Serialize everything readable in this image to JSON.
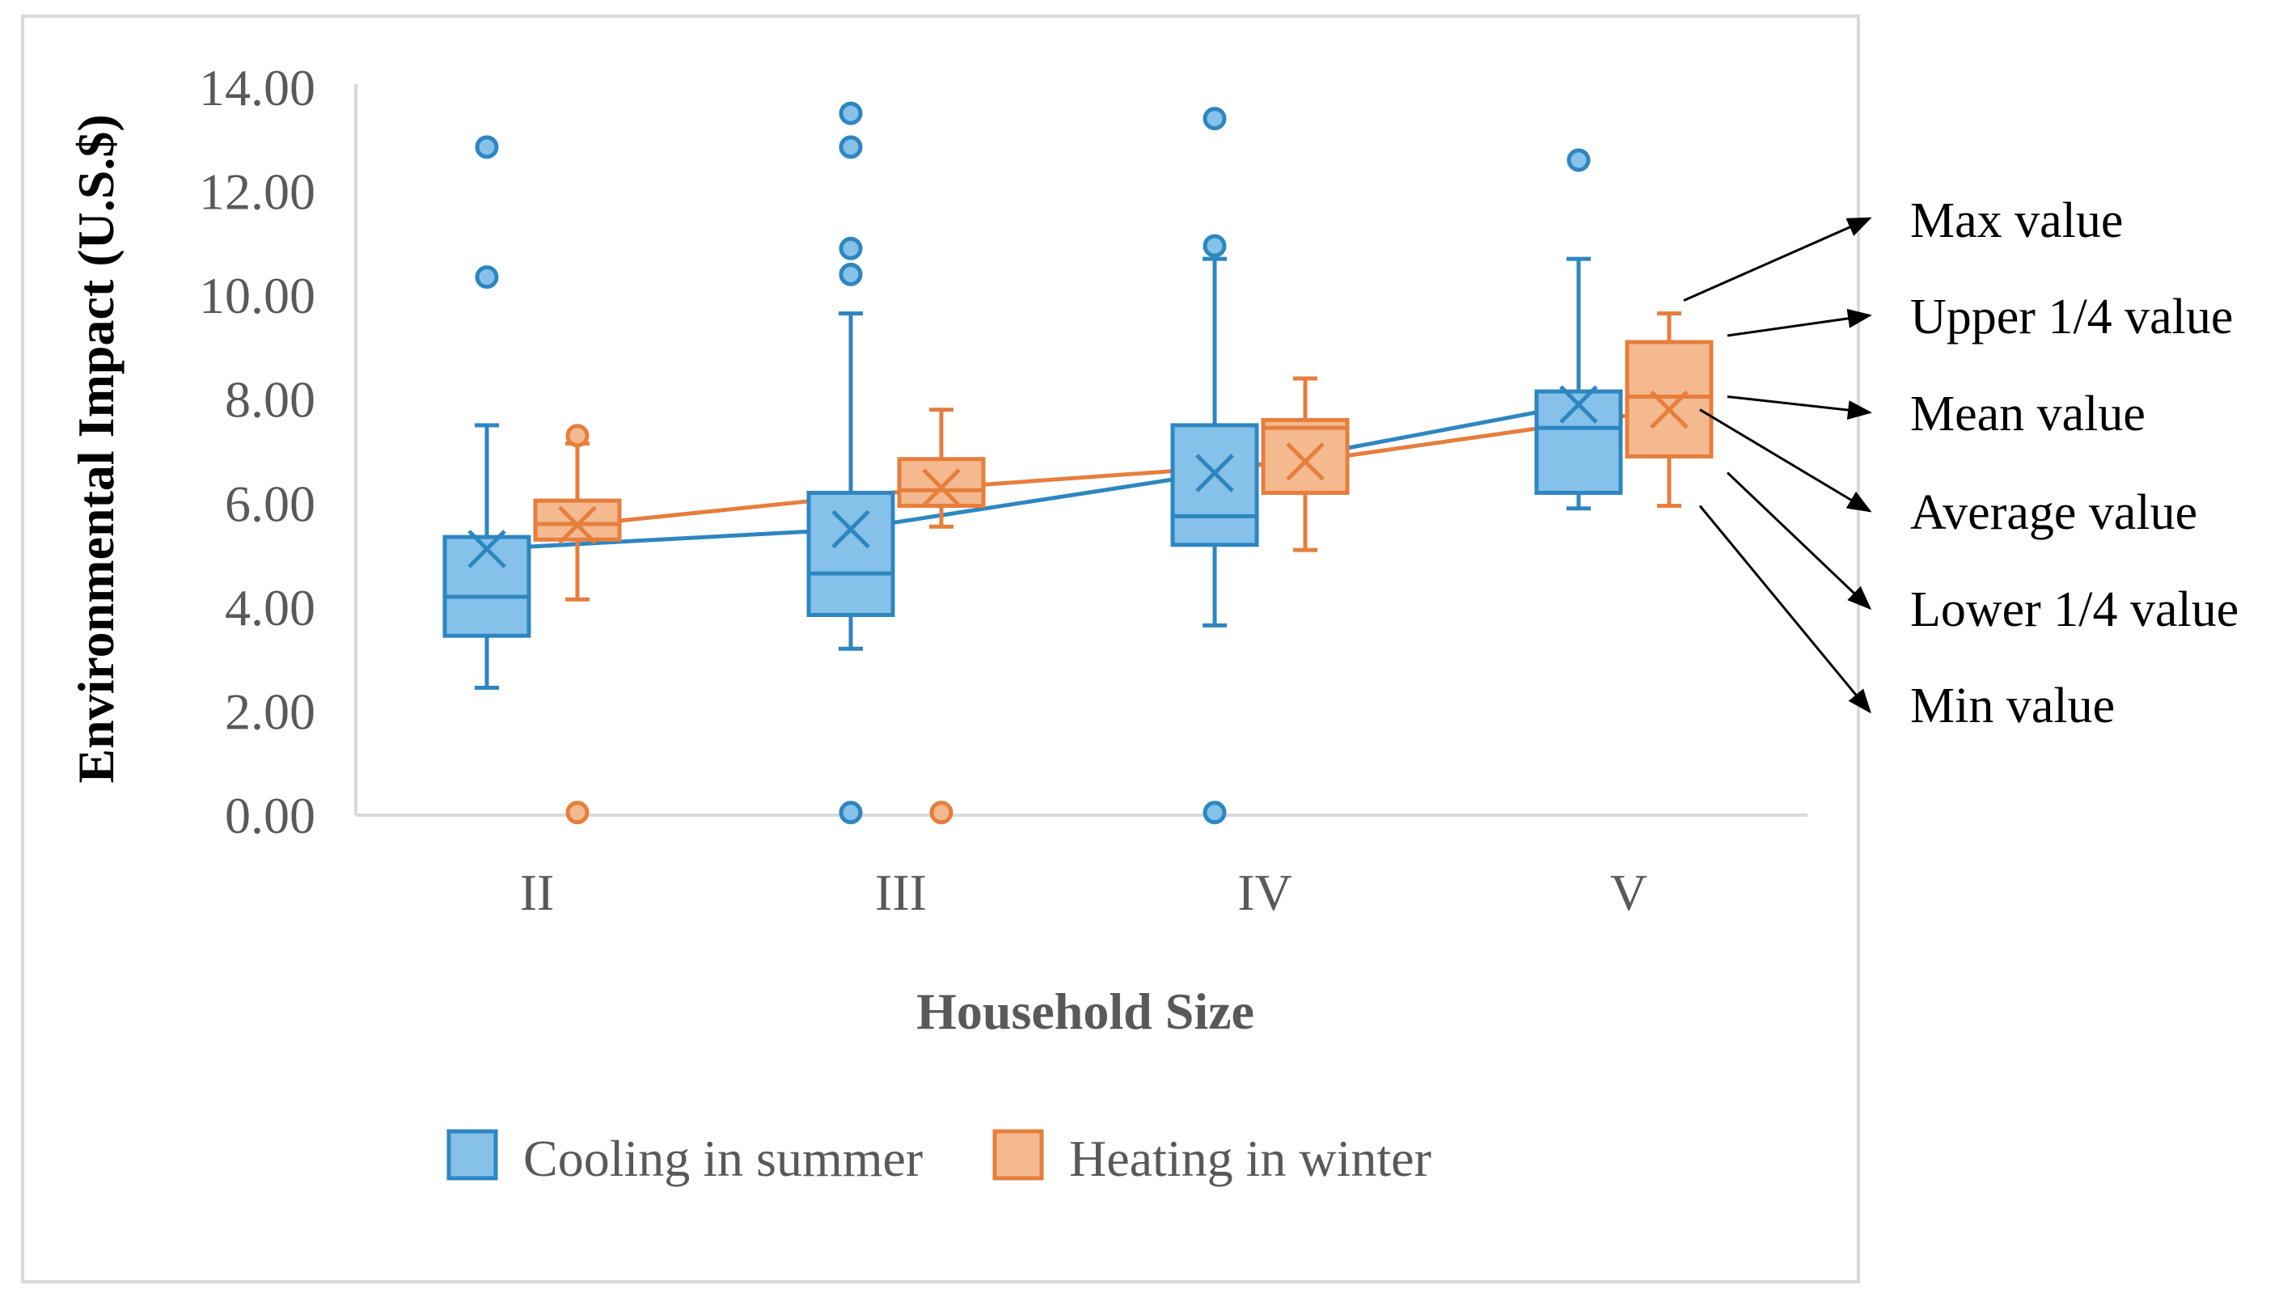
{
  "chart_data": {
    "type": "box",
    "ylabel": "Environmental Impact (U.S.$)",
    "xlabel": "Household Size",
    "ylim": [
      0,
      14
    ],
    "yticks": [
      "0.00",
      "2.00",
      "4.00",
      "6.00",
      "8.00",
      "10.00",
      "12.00",
      "14.00"
    ],
    "categories": [
      "II",
      "III",
      "IV",
      "V"
    ],
    "grid": false,
    "legend_position": "bottom",
    "series": [
      {
        "name": "Cooling in summer",
        "color": "#2e86c1",
        "fill": "#85c1e9",
        "boxes": [
          {
            "min": 2.45,
            "q1": 3.45,
            "median": 4.2,
            "q3": 5.35,
            "max": 7.5,
            "mean": 5.12,
            "outliers": [
              12.85,
              10.35
            ]
          },
          {
            "min": 3.2,
            "q1": 3.85,
            "median": 4.65,
            "q3": 6.2,
            "max": 9.65,
            "mean": 5.5,
            "outliers": [
              13.5,
              12.85,
              10.9,
              10.4,
              0.05
            ]
          },
          {
            "min": 3.65,
            "q1": 5.2,
            "median": 5.75,
            "q3": 7.5,
            "max": 10.7,
            "mean": 6.58,
            "outliers": [
              13.4,
              10.95,
              0.05
            ]
          },
          {
            "min": 5.9,
            "q1": 6.2,
            "median": 7.45,
            "q3": 8.15,
            "max": 10.7,
            "mean": 7.9,
            "outliers": [
              12.6
            ]
          }
        ]
      },
      {
        "name": "Heating in winter",
        "color": "#e67e3c",
        "fill": "#f5b98f",
        "boxes": [
          {
            "min": 4.15,
            "q1": 5.3,
            "median": 5.6,
            "q3": 6.05,
            "max": 7.15,
            "mean": 5.58,
            "outliers": [
              7.3,
              0.05
            ]
          },
          {
            "min": 5.55,
            "q1": 5.95,
            "median": 6.25,
            "q3": 6.85,
            "max": 7.8,
            "mean": 6.3,
            "outliers": [
              0.05
            ]
          },
          {
            "min": 5.1,
            "q1": 6.2,
            "median": 7.45,
            "q3": 7.6,
            "max": 8.4,
            "mean": 6.8,
            "outliers": []
          },
          {
            "min": 5.95,
            "q1": 6.9,
            "median": 8.05,
            "q3": 9.1,
            "max": 9.65,
            "mean": 7.8,
            "outliers": []
          }
        ]
      }
    ],
    "annotations": [
      "Max value",
      "Upper 1/4 value",
      "Mean value",
      "Average value",
      "Lower 1/4 value",
      "Min value"
    ]
  }
}
